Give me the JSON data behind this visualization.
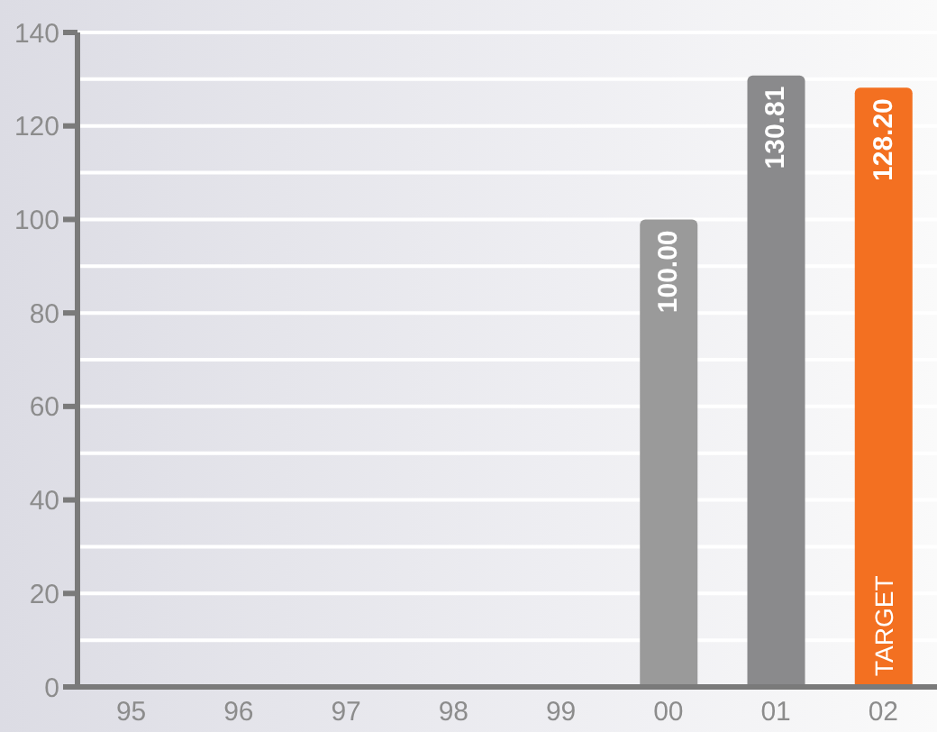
{
  "chart_data": {
    "type": "bar",
    "categories": [
      "95",
      "96",
      "97",
      "98",
      "99",
      "00",
      "01",
      "02"
    ],
    "values": [
      null,
      null,
      null,
      null,
      null,
      100.0,
      130.81,
      128.2
    ],
    "colors": [
      "#9a9a9a",
      "#9a9a9a",
      "#9a9a9a",
      "#9a9a9a",
      "#9a9a9a",
      "#9a9a9a",
      "#8a8a8c",
      "#f37021"
    ],
    "ylim": [
      0,
      140
    ],
    "yticks": [
      0,
      {
        "value": 10,
        "label": null
      },
      20,
      {
        "value": 30,
        "label": null
      },
      40,
      {
        "value": 50,
        "label": null
      },
      60,
      {
        "value": 70,
        "label": null
      },
      80,
      {
        "value": 90,
        "label": null
      },
      100,
      {
        "value": 110,
        "label": null
      },
      120,
      {
        "value": 130,
        "label": null
      },
      140
    ],
    "value_labels": [
      null,
      null,
      null,
      null,
      null,
      "100.00",
      "130.81",
      "128.20"
    ],
    "grid": "y",
    "annotations": [
      {
        "text": "TARGET",
        "x": "02",
        "y": 0
      }
    ]
  }
}
